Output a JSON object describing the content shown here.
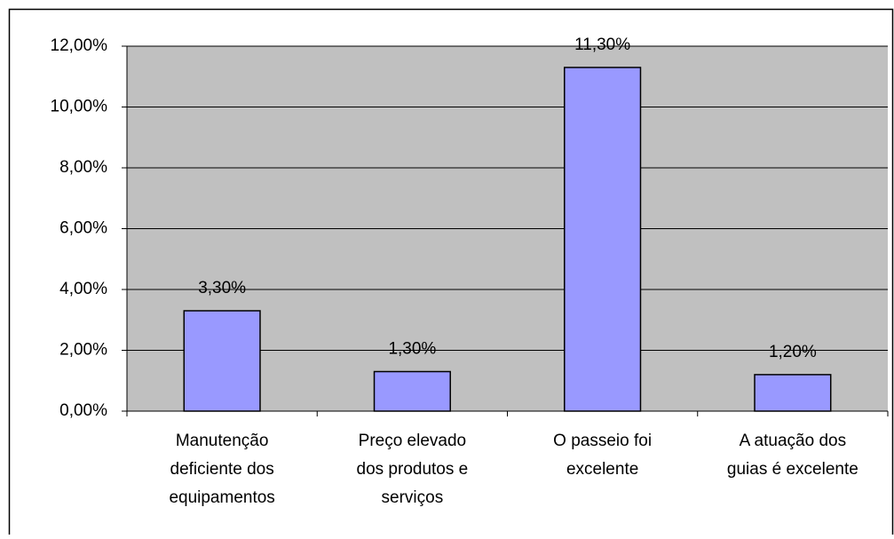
{
  "chart_data": {
    "type": "bar",
    "categories": [
      [
        "Manutenção",
        "deficiente dos",
        "equipamentos"
      ],
      [
        "Preço elevado",
        "dos produtos e",
        "serviços"
      ],
      [
        "O passeio foi",
        "excelente"
      ],
      [
        "A atuação dos",
        "guias é excelente"
      ]
    ],
    "values": [
      3.3,
      1.3,
      11.3,
      1.2
    ],
    "value_labels": [
      "3,30%",
      "1,30%",
      "11,30%",
      "1,20%"
    ],
    "color": "#9999ff",
    "ylim": [
      0,
      12
    ],
    "yticks": [
      {
        "value": 0,
        "label": "0,00%"
      },
      {
        "value": 2,
        "label": "2,00%"
      },
      {
        "value": 4,
        "label": "4,00%"
      },
      {
        "value": 6,
        "label": "6,00%"
      },
      {
        "value": 8,
        "label": "8,00%"
      },
      {
        "value": 10,
        "label": "10,00%"
      },
      {
        "value": 12,
        "label": "12,00%"
      }
    ],
    "grid": true
  }
}
